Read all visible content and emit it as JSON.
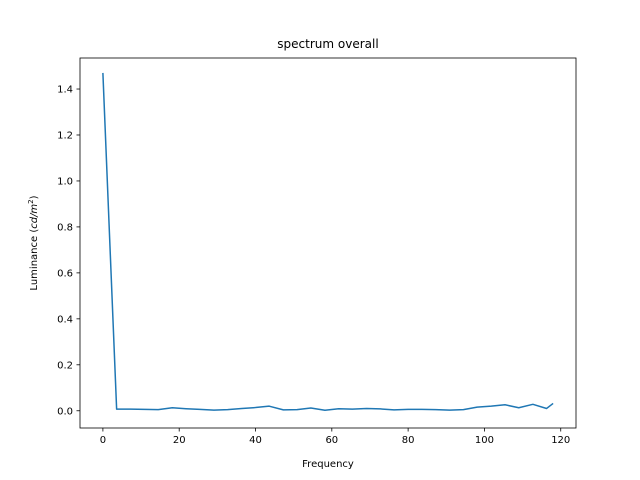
{
  "chart_data": {
    "type": "line",
    "title": "spectrum overall",
    "xlabel": "Frequency",
    "ylabel_main": "Luminance (",
    "ylabel_unit_base": "cd/m",
    "ylabel_unit_exp": "2",
    "ylabel_close": ")",
    "xlim": [
      -6,
      124
    ],
    "ylim": [
      -0.075,
      1.535
    ],
    "xticks": [
      0,
      20,
      40,
      60,
      80,
      100,
      120
    ],
    "yticks": [
      0.0,
      0.2,
      0.4,
      0.6,
      0.8,
      1.0,
      1.2,
      1.4
    ],
    "xtick_labels": [
      "0",
      "20",
      "40",
      "60",
      "80",
      "100",
      "120"
    ],
    "ytick_labels": [
      "0.0",
      "0.2",
      "0.4",
      "0.6",
      "0.8",
      "1.0",
      "1.2",
      "1.4"
    ],
    "color": "#1f77b4",
    "grid": false,
    "series": [
      {
        "x": [
          0,
          3.6,
          7.3,
          10.9,
          14.5,
          18.2,
          21.8,
          25.4,
          29.1,
          32.7,
          36.4,
          40.0,
          43.6,
          47.3,
          50.9,
          54.5,
          58.2,
          61.8,
          65.4,
          69.1,
          72.7,
          76.3,
          80.0,
          83.6,
          87.2,
          90.9,
          94.5,
          98.1,
          101.8,
          105.4,
          109.0,
          112.7,
          116.3,
          118
        ],
        "y": [
          1.47,
          0.007,
          0.007,
          0.006,
          0.005,
          0.013,
          0.009,
          0.006,
          0.003,
          0.005,
          0.01,
          0.014,
          0.02,
          0.004,
          0.005,
          0.012,
          0.002,
          0.009,
          0.007,
          0.01,
          0.008,
          0.004,
          0.006,
          0.006,
          0.005,
          0.003,
          0.005,
          0.016,
          0.02,
          0.026,
          0.013,
          0.028,
          0.01,
          0.032
        ]
      }
    ]
  }
}
